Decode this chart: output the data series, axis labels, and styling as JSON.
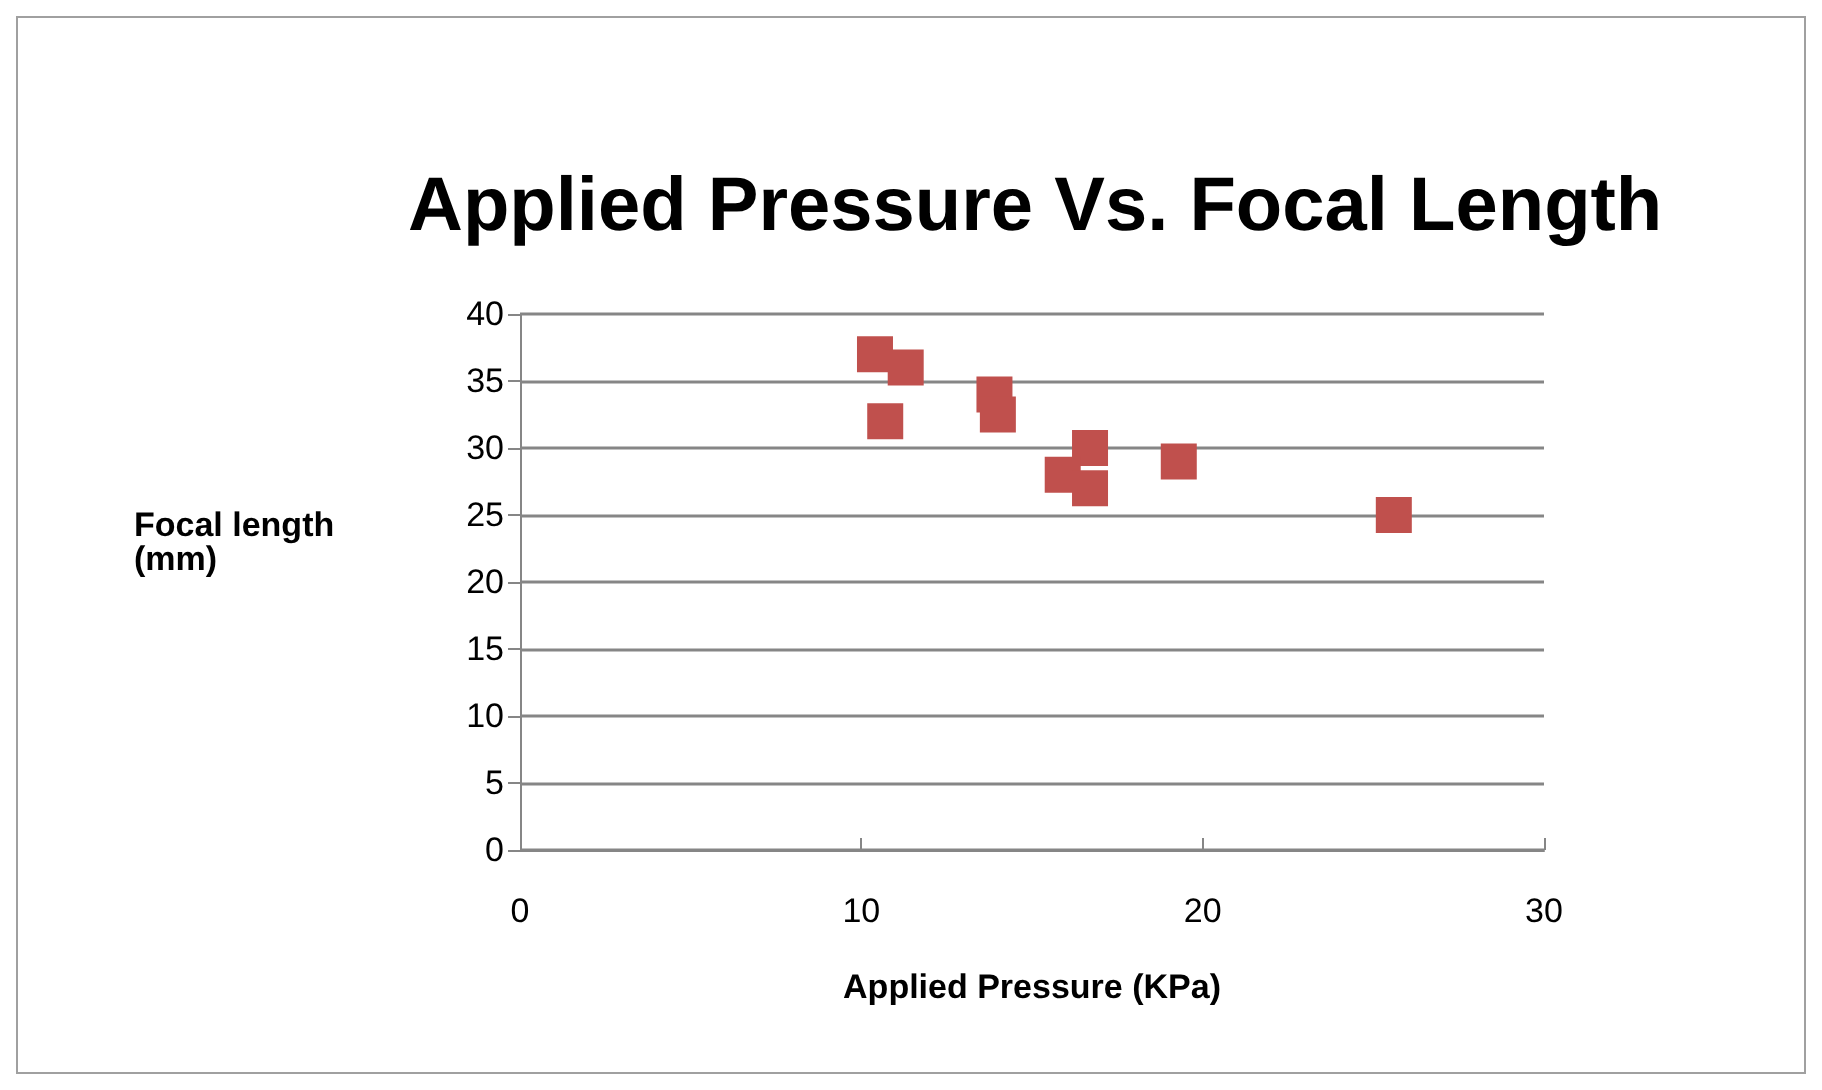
{
  "chart_data": {
    "type": "scatter",
    "title": "Applied Pressure Vs. Focal Length",
    "xlabel": "Applied Pressure (KPa)",
    "ylabel": "Focal length\n(mm)",
    "x": [
      10.4,
      11.3,
      10.7,
      13.9,
      14.0,
      16.7,
      15.9,
      16.7,
      19.3,
      25.6
    ],
    "series": [
      {
        "color": "#c0504d",
        "values": [
          37,
          36,
          32,
          34,
          32.5,
          30,
          28,
          27,
          29,
          25
        ]
      }
    ],
    "xlim": [
      0,
      30
    ],
    "xticks": [
      0,
      10,
      20,
      30
    ],
    "ylim": [
      0,
      40
    ],
    "yticks": [
      0,
      5,
      10,
      15,
      20,
      25,
      30,
      35,
      40
    ],
    "grid": "y",
    "marker": "square"
  }
}
